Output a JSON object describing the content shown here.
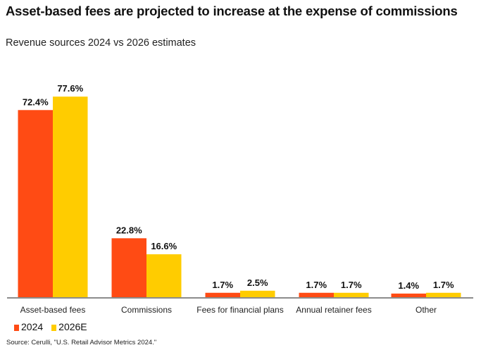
{
  "chart_data": {
    "type": "bar",
    "title": "Asset-based fees are projected to increase at the expense of commissions",
    "subtitle": "Revenue sources 2024 vs 2026 estimates",
    "categories": [
      "Asset-based fees",
      "Commissions",
      "Fees for financial plans",
      "Annual retainer fees",
      "Other"
    ],
    "series": [
      {
        "name": "2024",
        "color": "#FF4B14",
        "values": [
          72.4,
          22.8,
          1.7,
          1.7,
          1.4
        ],
        "labels": [
          "72.4%",
          "22.8%",
          "1.7%",
          "1.7%",
          "1.4%"
        ]
      },
      {
        "name": "2026E",
        "color": "#FFCC00",
        "values": [
          77.6,
          16.6,
          2.5,
          1.7,
          1.7
        ],
        "labels": [
          "77.6%",
          "16.6%",
          "2.5%",
          "1.7%",
          "1.7%"
        ]
      }
    ],
    "ylim": [
      0,
      80
    ],
    "grid": false,
    "legend": "bottom-left",
    "source": "Source: Cerulli, \"U.S. Retail Advisor Metrics 2024.\""
  }
}
